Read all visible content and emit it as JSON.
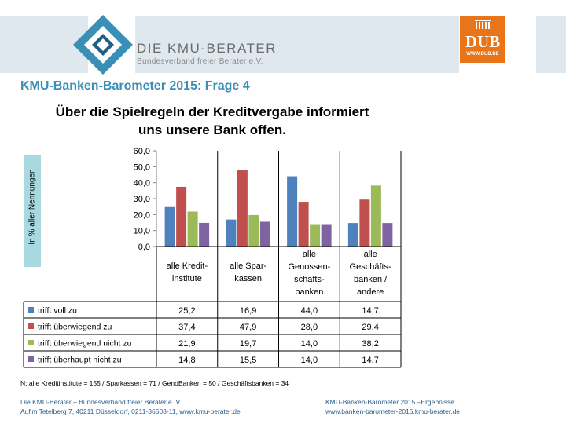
{
  "header": {
    "brand_name": "DIE KMU-BERATER",
    "brand_sub": "Bundesverband freier Berater e.V.",
    "dub_text": "DUB",
    "dub_url": "WWW.DUB.DE"
  },
  "slide_title": "KMU-Banken-Barometer 2015: Frage 4",
  "chart_data": {
    "type": "bar",
    "title_lines": [
      "Über die Spielregeln der Kreditvergabe informiert",
      "uns unsere Bank offen."
    ],
    "ylabel": "In % aller Nennungen",
    "ylim": [
      0,
      60
    ],
    "yticks": [
      "0,0",
      "10,0",
      "20,0",
      "30,0",
      "40,0",
      "50,0",
      "60,0"
    ],
    "categories": [
      [
        "alle Kredit-",
        "institute"
      ],
      [
        "alle Spar-",
        "kassen"
      ],
      [
        "alle",
        "Genossen-",
        "schafts-",
        "banken"
      ],
      [
        "alle",
        "Geschäfts-",
        "banken /",
        "andere"
      ]
    ],
    "series": [
      {
        "name": "trifft voll zu",
        "color": "#4f81bd",
        "values": [
          25.2,
          16.9,
          44.0,
          14.7
        ],
        "labels": [
          "25,2",
          "16,9",
          "44,0",
          "14,7"
        ]
      },
      {
        "name": "trifft überwiegend zu",
        "color": "#c0504d",
        "values": [
          37.4,
          47.9,
          28.0,
          29.4
        ],
        "labels": [
          "37,4",
          "47,9",
          "28,0",
          "29,4"
        ]
      },
      {
        "name": "trifft überwiegend nicht zu",
        "color": "#9bbb59",
        "values": [
          21.9,
          19.7,
          14.0,
          38.2
        ],
        "labels": [
          "21,9",
          "19,7",
          "14,0",
          "38,2"
        ]
      },
      {
        "name": "trifft überhaupt nicht zu",
        "color": "#8064a2",
        "values": [
          14.8,
          15.5,
          14.0,
          14.7
        ],
        "labels": [
          "14,8",
          "15,5",
          "14,0",
          "14,7"
        ]
      }
    ],
    "grid": false,
    "legend": "table"
  },
  "note": "N: alle Kreditinstitute = 155  /  Sparkassen = 71  /  GenoBanken = 50  /  Geschäftsbanken = 34",
  "footer": {
    "left_line1": "Die KMU-Berater – Bundesverband freier Berater e. V.",
    "left_line2": "Auf'm Tetelberg 7, 40211 Düsseldorf, 0211-36503-11, www.kmu-berater.de",
    "right_line1": "KMU-Banken-Barometer 2015 –Ergebnisse",
    "right_line2": "www.banken-barometer-2015.kmu-berater.de"
  }
}
